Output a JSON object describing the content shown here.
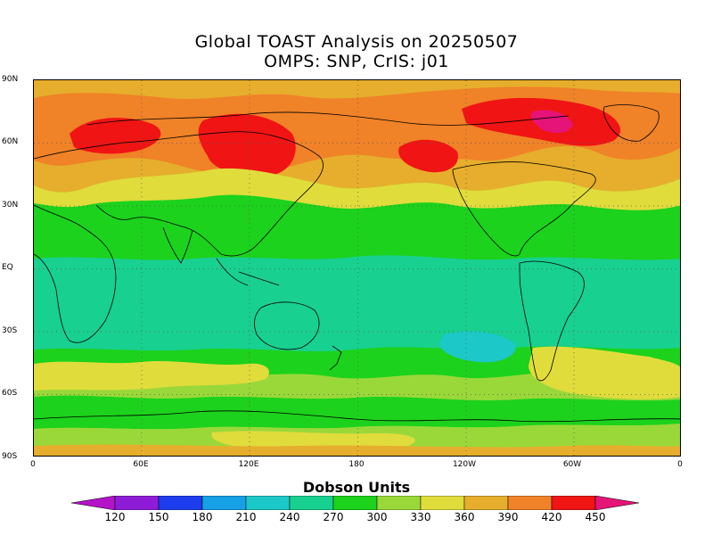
{
  "title_line1": "Global TOAST Analysis on 20250507",
  "title_line2": "OMPS: SNP, CrIS: j01",
  "lat_labels": [
    "90N",
    "60N",
    "30N",
    "EQ",
    "30S",
    "60S",
    "90S"
  ],
  "lon_labels": [
    "0",
    "60E",
    "120E",
    "180",
    "120W",
    "60W",
    "0"
  ],
  "legend": {
    "title": "Dobson Units",
    "ticks": [
      "120",
      "150",
      "180",
      "210",
      "240",
      "270",
      "300",
      "330",
      "360",
      "390",
      "420",
      "450"
    ],
    "colors": [
      "#8e1cd6",
      "#1c3cee",
      "#16a0e6",
      "#1cc8c8",
      "#18d090",
      "#1cd21c",
      "#9ad83a",
      "#e0dc3c",
      "#e6ae2c",
      "#f08228",
      "#f01414",
      "#e61478"
    ],
    "under_color": "#b414c8",
    "over_color": "#e61478"
  },
  "map": {
    "projection": "cylindrical-equidistant",
    "lon_range": [
      0,
      360
    ],
    "lat_range": [
      -90,
      90
    ],
    "grid": "dotted",
    "background_class_color": "#9ad83a"
  }
}
